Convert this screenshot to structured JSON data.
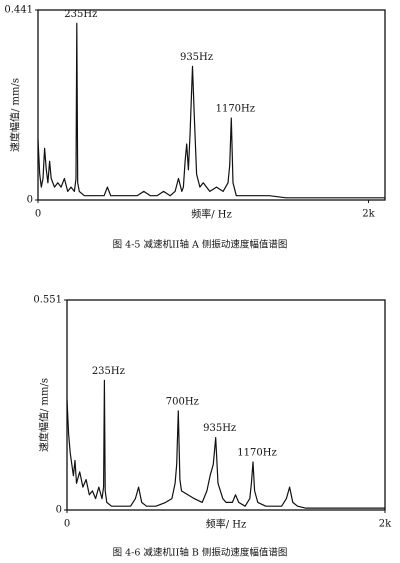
{
  "chart_data": [
    {
      "type": "line",
      "ylabel": "速度幅值/ mm/s",
      "xlabel": "频率/ Hz",
      "caption": "图 4-5 减速机II轴 A 侧振动速度幅值谱图",
      "xlim": [
        0,
        2100
      ],
      "ylim": [
        0,
        0.441
      ],
      "xticks": [
        0,
        {
          "value": 2000,
          "label": "2k"
        }
      ],
      "yticks": [
        0,
        0.441
      ],
      "color": "#111111",
      "x": [
        0,
        10,
        20,
        30,
        40,
        50,
        60,
        70,
        80,
        100,
        120,
        140,
        160,
        180,
        200,
        220,
        230,
        235,
        240,
        250,
        280,
        320,
        360,
        400,
        420,
        440,
        480,
        520,
        560,
        600,
        640,
        680,
        720,
        760,
        800,
        830,
        850,
        870,
        880,
        890,
        900,
        910,
        920,
        935,
        945,
        960,
        980,
        1000,
        1040,
        1080,
        1120,
        1150,
        1160,
        1170,
        1180,
        1200,
        1250,
        1300,
        1400,
        1500,
        1600,
        1700,
        1800,
        1900,
        2000,
        2100
      ],
      "values": [
        0.14,
        0.06,
        0.03,
        0.05,
        0.12,
        0.07,
        0.04,
        0.09,
        0.05,
        0.03,
        0.04,
        0.03,
        0.05,
        0.02,
        0.03,
        0.02,
        0.05,
        0.41,
        0.04,
        0.02,
        0.01,
        0.01,
        0.01,
        0.01,
        0.03,
        0.01,
        0.01,
        0.01,
        0.01,
        0.01,
        0.02,
        0.01,
        0.01,
        0.02,
        0.01,
        0.02,
        0.05,
        0.02,
        0.03,
        0.09,
        0.13,
        0.07,
        0.15,
        0.31,
        0.2,
        0.06,
        0.03,
        0.04,
        0.02,
        0.03,
        0.02,
        0.04,
        0.08,
        0.19,
        0.04,
        0.01,
        0.01,
        0.01,
        0.01,
        0.005,
        0.005,
        0.005,
        0.005,
        0.005,
        0.005,
        0.005
      ],
      "annotations": [
        {
          "text": "235Hz",
          "x": 235
        },
        {
          "text": "935Hz",
          "x": 935
        },
        {
          "text": "1170Hz",
          "x": 1170
        }
      ]
    },
    {
      "type": "line",
      "ylabel": "速度幅值/ mm/s",
      "xlabel": "频率/ Hz",
      "caption": "图 4-6 减速机II轴 B 侧振动速度幅值谱图",
      "xlim": [
        0,
        2000
      ],
      "ylim": [
        0,
        0.551
      ],
      "xticks": [
        0,
        {
          "value": 2000,
          "label": "2k"
        }
      ],
      "yticks": [
        0,
        0.551
      ],
      "color": "#111111",
      "x": [
        0,
        10,
        20,
        30,
        40,
        50,
        60,
        80,
        100,
        120,
        140,
        160,
        180,
        200,
        220,
        230,
        235,
        240,
        250,
        280,
        320,
        360,
        400,
        430,
        450,
        470,
        500,
        560,
        620,
        660,
        680,
        690,
        700,
        710,
        720,
        760,
        800,
        850,
        880,
        900,
        920,
        935,
        950,
        980,
        1000,
        1040,
        1060,
        1080,
        1120,
        1150,
        1160,
        1170,
        1180,
        1200,
        1250,
        1300,
        1350,
        1380,
        1400,
        1420,
        1450,
        1500,
        1600,
        1700,
        1800,
        1900,
        2000
      ],
      "values": [
        0.29,
        0.2,
        0.15,
        0.12,
        0.09,
        0.13,
        0.07,
        0.1,
        0.06,
        0.08,
        0.04,
        0.05,
        0.03,
        0.06,
        0.03,
        0.06,
        0.34,
        0.05,
        0.02,
        0.01,
        0.01,
        0.01,
        0.01,
        0.03,
        0.06,
        0.02,
        0.01,
        0.01,
        0.02,
        0.03,
        0.07,
        0.12,
        0.26,
        0.08,
        0.05,
        0.04,
        0.03,
        0.02,
        0.05,
        0.09,
        0.12,
        0.19,
        0.07,
        0.03,
        0.02,
        0.02,
        0.04,
        0.02,
        0.01,
        0.03,
        0.07,
        0.126,
        0.05,
        0.02,
        0.01,
        0.01,
        0.01,
        0.03,
        0.06,
        0.02,
        0.01,
        0.005,
        0.005,
        0.005,
        0.005,
        0.005,
        0.005
      ],
      "annotations": [
        {
          "text": "235Hz",
          "x": 235
        },
        {
          "text": "700Hz",
          "x": 700
        },
        {
          "text": "935Hz",
          "x": 935
        },
        {
          "text": "1170Hz",
          "x": 1170
        }
      ]
    }
  ]
}
